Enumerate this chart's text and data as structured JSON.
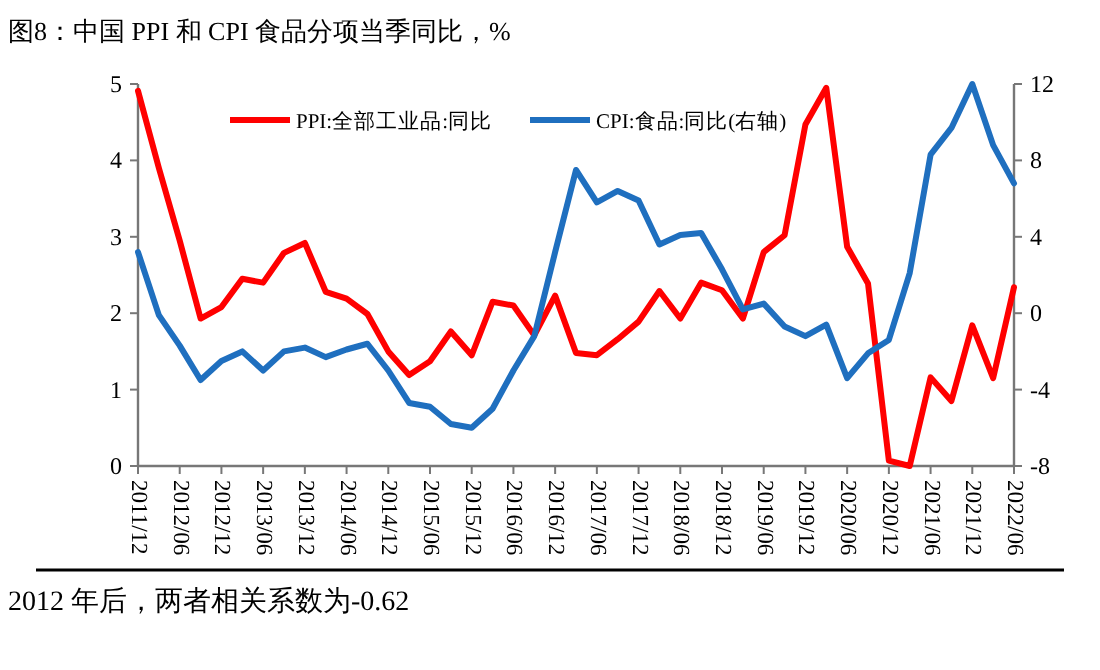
{
  "chart_data": {
    "type": "line",
    "title": "图8：中国 PPI 和 CPI 食品分项当季同比，%",
    "categories": [
      "2011/12",
      null,
      "2012/06",
      null,
      "2012/12",
      null,
      "2013/06",
      null,
      "2013/12",
      null,
      "2014/06",
      null,
      "2014/12",
      null,
      "2015/06",
      null,
      "2015/12",
      null,
      "2016/06",
      null,
      "2016/12",
      null,
      "2017/06",
      null,
      "2017/12",
      null,
      "2018/06",
      null,
      "2018/12",
      null,
      "2019/06",
      null,
      "2019/12",
      null,
      "2020/06",
      null,
      "2020/12",
      null,
      "2021/06",
      null,
      "2021/12",
      null,
      "2022/06"
    ],
    "series": [
      {
        "name": "PPI:全部工业品:同比",
        "color": "#ff0000",
        "values": [
          4.91,
          3.9,
          2.95,
          1.93,
          2.08,
          2.45,
          2.4,
          2.79,
          2.92,
          2.28,
          2.19,
          1.99,
          1.5,
          1.19,
          1.37,
          1.76,
          1.45,
          2.15,
          2.1,
          1.71,
          2.23,
          1.48,
          1.45,
          1.66,
          1.89,
          2.29,
          1.93,
          2.4,
          2.3,
          1.93,
          2.8,
          3.02,
          4.47,
          4.95,
          2.87,
          2.39,
          0.07,
          0,
          1.16,
          0.85,
          1.84,
          1.15,
          2.34
        ]
      },
      {
        "name": "CPI:食品:同比(右轴)",
        "color": "#1f6fbf",
        "axis": "y2",
        "values": [
          3.2,
          -0.1,
          -1.7,
          -3.5,
          -2.5,
          -2.0,
          -3.0,
          -2.0,
          -1.8,
          -2.3,
          -1.9,
          -1.6,
          -3.0,
          -4.7,
          -4.9,
          -5.8,
          -6.0,
          -5.0,
          -3.0,
          -1.2,
          3.2,
          7.5,
          5.8,
          6.4,
          5.9,
          3.6,
          4.1,
          4.2,
          2.3,
          0.2,
          0.5,
          -0.7,
          -1.2,
          -0.6,
          -3.4,
          -2.1,
          -1.4,
          2.1,
          8.3,
          9.7,
          12,
          8.8,
          6.8
        ]
      }
    ],
    "ylim": [
      0,
      5
    ],
    "yticks": [
      0,
      1,
      2,
      3,
      4,
      5
    ],
    "y2lim": [
      -8,
      12
    ],
    "y2ticks": [
      -8,
      -4,
      0,
      4,
      8,
      12
    ],
    "legend": "top",
    "grid": false,
    "annotations": [
      "2012 年后，两者相关系数为-0.62"
    ]
  }
}
